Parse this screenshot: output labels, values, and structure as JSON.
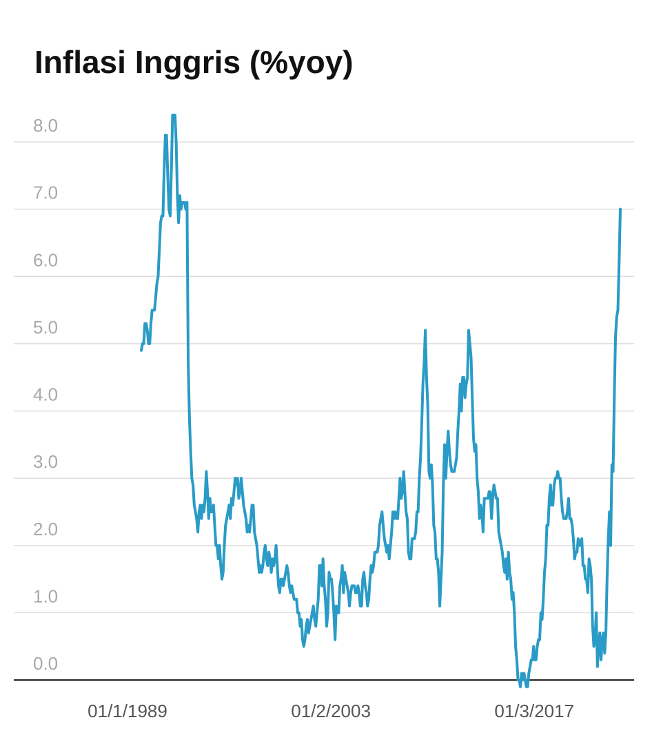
{
  "chart_data": {
    "type": "line",
    "title": "Inflasi Inggris (%yoy)",
    "color": "#2a9bc6",
    "grid": true,
    "ylim": [
      0,
      8.4
    ],
    "yticks": [
      {
        "value": 0,
        "label": "0.0"
      },
      {
        "value": 1,
        "label": "1.0"
      },
      {
        "value": 2,
        "label": "2.0"
      },
      {
        "value": 3,
        "label": "3.0"
      },
      {
        "value": 4,
        "label": "4.0"
      },
      {
        "value": 5,
        "label": "5.0"
      },
      {
        "value": 6,
        "label": "6.0"
      },
      {
        "value": 7,
        "label": "7.0"
      },
      {
        "value": 8,
        "label": "8.0"
      }
    ],
    "categories": [
      "01/1/1989",
      null,
      null,
      null,
      null,
      null,
      null,
      null,
      null,
      null,
      null,
      null,
      null,
      null,
      null,
      null,
      null,
      null,
      null,
      null,
      null,
      null,
      null,
      null,
      null,
      null,
      null,
      null,
      null,
      null,
      null,
      null,
      null,
      null,
      null,
      null,
      null,
      null,
      null,
      null,
      null,
      null,
      null,
      null,
      null,
      null,
      null,
      null,
      null,
      null,
      null,
      null,
      null,
      null,
      null,
      null,
      null,
      null,
      null,
      null,
      null,
      null,
      null,
      null,
      null,
      null,
      null,
      null,
      null,
      null,
      null,
      null,
      null,
      null,
      null,
      null,
      null,
      null,
      null,
      null,
      null,
      null,
      null,
      null,
      null,
      null,
      null,
      null,
      null,
      null,
      null,
      null,
      null,
      null,
      null,
      null,
      null,
      null,
      null,
      null,
      null,
      null,
      null,
      null,
      null,
      null,
      null,
      null,
      null,
      null,
      null,
      null,
      null,
      null,
      null,
      null,
      null,
      null,
      null,
      null,
      null,
      null,
      null,
      null,
      null,
      null,
      null,
      null,
      null,
      null,
      null,
      null,
      null,
      null,
      null,
      null,
      null,
      null,
      null,
      null,
      null,
      null,
      null,
      null,
      null,
      null,
      null,
      null,
      null,
      null,
      null,
      null,
      null,
      null,
      null,
      null,
      null,
      null,
      null,
      null,
      null,
      null,
      null,
      null,
      null,
      null,
      null,
      null,
      null,
      "01/2/2003",
      null,
      null,
      null,
      null,
      null,
      null,
      null,
      null,
      null,
      null,
      null,
      null,
      null,
      null,
      null,
      null,
      null,
      null,
      null,
      null,
      null,
      null,
      null,
      null,
      null,
      null,
      null,
      null,
      null,
      null,
      null,
      null,
      null,
      null,
      null,
      null,
      null,
      null,
      null,
      null,
      null,
      null,
      null,
      null,
      null,
      null,
      null,
      null,
      null,
      null,
      null,
      null,
      null,
      null,
      null,
      null,
      null,
      null,
      null,
      null,
      null,
      null,
      null,
      null,
      null,
      null,
      null,
      null,
      null,
      null,
      null,
      null,
      null,
      null,
      null,
      null,
      null,
      null,
      null,
      null,
      null,
      null,
      null,
      null,
      null,
      null,
      null,
      null,
      null,
      null,
      null,
      null,
      null,
      null,
      null,
      null,
      null,
      null,
      null,
      null,
      null,
      null,
      null,
      null,
      null,
      null,
      null,
      null,
      null,
      null,
      null,
      null,
      null,
      null,
      null,
      null,
      null,
      null,
      null,
      null,
      null,
      null,
      null,
      null,
      null,
      null,
      null,
      null,
      null,
      null,
      null,
      null,
      null,
      null,
      null,
      null,
      null,
      null,
      null,
      null,
      null,
      null,
      null,
      null,
      null,
      null,
      null,
      null,
      null,
      null,
      null,
      null,
      null,
      null,
      null,
      null,
      null,
      null,
      null,
      null,
      null,
      null,
      null,
      null,
      null,
      null,
      null,
      null,
      "01/3/2017",
      null,
      null,
      null,
      null,
      null,
      null,
      null,
      null,
      null,
      null,
      null,
      null,
      null,
      null,
      null,
      null,
      null,
      null,
      null,
      null,
      null,
      null,
      null,
      null,
      null,
      null,
      null,
      null,
      null,
      null,
      null,
      null,
      null,
      null,
      null,
      null,
      null,
      null,
      null,
      null,
      null,
      null,
      null,
      null,
      null,
      null,
      null,
      null,
      null,
      null,
      null,
      null,
      null,
      null,
      null,
      null,
      null,
      null,
      null,
      null
    ],
    "values": [
      4.9,
      5.0,
      5.0,
      5.3,
      5.3,
      5.2,
      5.0,
      5.0,
      5.3,
      5.5,
      5.5,
      5.5,
      5.7,
      5.9,
      6.0,
      6.4,
      6.8,
      6.9,
      6.9,
      7.6,
      8.1,
      8.1,
      7.5,
      7.0,
      6.9,
      7.6,
      8.4,
      8.4,
      8.4,
      8.0,
      7.2,
      6.8,
      7.2,
      7.0,
      7.1,
      7.1,
      7.1,
      7.0,
      7.1,
      4.7,
      3.9,
      3.4,
      3.0,
      2.9,
      2.6,
      2.5,
      2.4,
      2.2,
      2.5,
      2.6,
      2.4,
      2.6,
      2.5,
      2.7,
      3.1,
      2.8,
      2.4,
      2.7,
      2.5,
      2.5,
      2.6,
      2.3,
      2.0,
      2.0,
      1.8,
      2.0,
      1.7,
      1.5,
      1.6,
      2.0,
      2.3,
      2.4,
      2.5,
      2.6,
      2.4,
      2.7,
      2.6,
      2.8,
      3.0,
      2.9,
      3.0,
      2.7,
      2.8,
      3.0,
      2.8,
      2.6,
      2.5,
      2.4,
      2.2,
      2.3,
      2.2,
      2.4,
      2.6,
      2.6,
      2.2,
      2.1,
      2.0,
      1.8,
      1.6,
      1.7,
      1.6,
      1.7,
      1.9,
      2.0,
      1.8,
      1.7,
      1.9,
      1.8,
      1.6,
      1.8,
      1.7,
      1.8,
      2.0,
      1.7,
      1.4,
      1.3,
      1.5,
      1.5,
      1.4,
      1.5,
      1.6,
      1.7,
      1.6,
      1.4,
      1.3,
      1.4,
      1.3,
      1.2,
      1.2,
      1.2,
      1.0,
      1.0,
      0.8,
      0.9,
      0.6,
      0.5,
      0.6,
      0.8,
      0.9,
      0.7,
      0.8,
      0.9,
      1.0,
      1.1,
      0.9,
      0.8,
      1.0,
      1.2,
      1.7,
      1.7,
      1.4,
      1.8,
      1.4,
      1.2,
      0.8,
      1.0,
      1.6,
      1.5,
      1.5,
      1.3,
      1.0,
      0.6,
      1.1,
      1.0,
      1.0,
      1.4,
      1.5,
      1.7,
      1.3,
      1.6,
      1.5,
      1.4,
      1.3,
      1.1,
      1.3,
      1.4,
      1.4,
      1.4,
      1.3,
      1.3,
      1.4,
      1.3,
      1.1,
      1.1,
      1.5,
      1.6,
      1.4,
      1.3,
      1.1,
      1.2,
      1.5,
      1.7,
      1.6,
      1.7,
      1.9,
      1.9,
      1.9,
      2.0,
      2.3,
      2.4,
      2.5,
      2.3,
      2.1,
      2.0,
      1.9,
      2.0,
      1.8,
      2.0,
      2.2,
      2.5,
      2.4,
      2.5,
      2.4,
      2.4,
      2.7,
      3.0,
      2.7,
      2.8,
      3.1,
      2.8,
      2.5,
      2.4,
      1.9,
      1.8,
      1.8,
      2.1,
      2.1,
      2.1,
      2.2,
      2.5,
      2.5,
      3.0,
      3.3,
      3.8,
      4.4,
      4.7,
      5.2,
      4.5,
      4.1,
      3.1,
      3.0,
      3.2,
      2.9,
      2.3,
      2.2,
      1.8,
      1.8,
      1.6,
      1.1,
      1.5,
      1.9,
      2.9,
      3.5,
      3.0,
      3.4,
      3.7,
      3.4,
      3.2,
      3.1,
      3.1,
      3.1,
      3.2,
      3.3,
      3.7,
      4.0,
      4.4,
      4.0,
      4.5,
      4.5,
      4.2,
      4.4,
      4.5,
      5.2,
      5.0,
      4.8,
      4.2,
      3.6,
      3.4,
      3.5,
      3.0,
      2.8,
      2.4,
      2.6,
      2.5,
      2.2,
      2.7,
      2.7,
      2.7,
      2.7,
      2.8,
      2.8,
      2.4,
      2.7,
      2.9,
      2.8,
      2.7,
      2.7,
      2.2,
      2.1,
      2.0,
      1.9,
      1.7,
      1.6,
      1.8,
      1.5,
      1.9,
      1.6,
      1.5,
      1.2,
      1.3,
      1.0,
      0.5,
      0.3,
      0.0,
      0.0,
      -0.1,
      0.1,
      0.0,
      0.1,
      0.0,
      -0.1,
      -0.1,
      0.1,
      0.2,
      0.3,
      0.3,
      0.5,
      0.3,
      0.3,
      0.5,
      0.6,
      0.6,
      1.0,
      0.9,
      1.2,
      1.6,
      1.8,
      2.3,
      2.3,
      2.7,
      2.9,
      2.6,
      2.6,
      2.9,
      3.0,
      3.0,
      3.1,
      3.0,
      3.0,
      2.7,
      2.5,
      2.4,
      2.4,
      2.4,
      2.5,
      2.7,
      2.4,
      2.4,
      2.3,
      2.1,
      1.8,
      1.9,
      1.9,
      2.1,
      2.0,
      2.0,
      2.1,
      1.7,
      1.7,
      1.5,
      1.5,
      1.3,
      1.8,
      1.7,
      1.5,
      0.8,
      0.5,
      0.6,
      1.0,
      0.2,
      0.5,
      0.7,
      0.3,
      0.6,
      0.7,
      0.4,
      0.7,
      1.5,
      2.1,
      2.5,
      2.0,
      3.2,
      3.1,
      4.2,
      5.1,
      5.4,
      5.5,
      6.2,
      7.0
    ]
  }
}
